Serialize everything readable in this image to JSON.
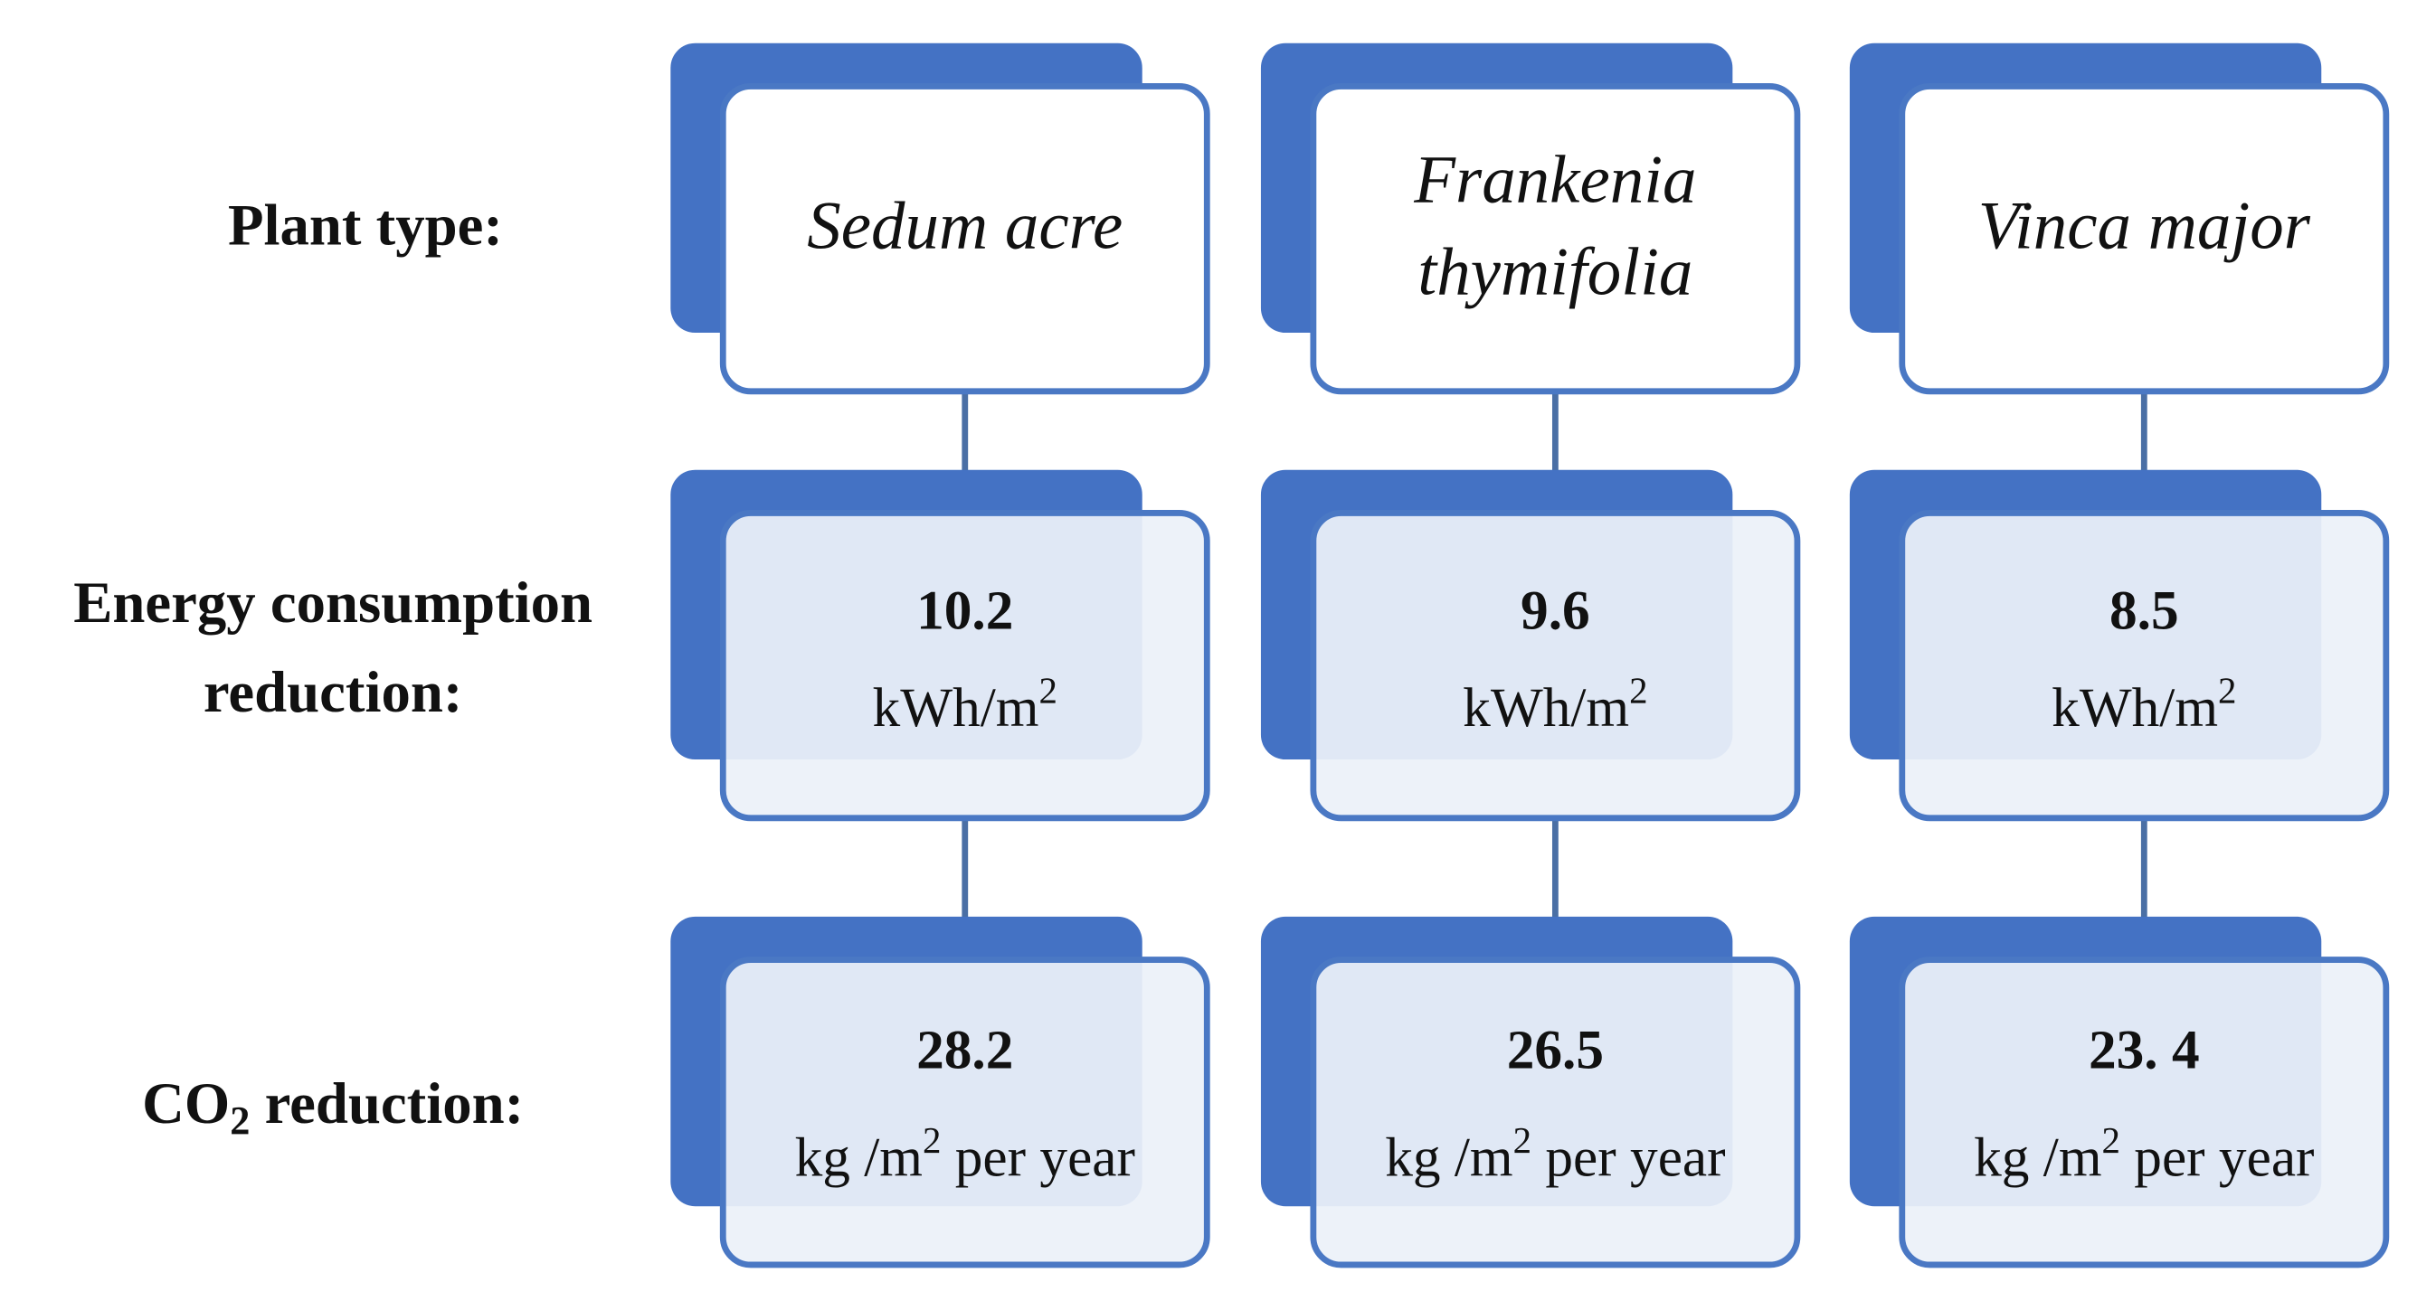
{
  "row_labels": {
    "plant_type": "Plant type:",
    "energy": [
      "Energy consumption",
      "reduction:"
    ],
    "co2": {
      "pre": "CO",
      "sub": "2",
      "post": " reduction:"
    }
  },
  "columns": [
    {
      "plant": [
        "Sedum acre"
      ],
      "energy_value": "10.2",
      "co2_value": "28.2"
    },
    {
      "plant": [
        "Frankenia",
        "thymifolia"
      ],
      "energy_value": "9.6",
      "co2_value": "26.5"
    },
    {
      "plant": [
        "Vinca major"
      ],
      "energy_value": "8.5",
      "co2_value": "23. 4"
    }
  ],
  "units": {
    "energy": {
      "base": "kWh/m",
      "sup": "2"
    },
    "co2": {
      "base": "kg /m",
      "sup": "2",
      "post": " per year"
    }
  }
}
